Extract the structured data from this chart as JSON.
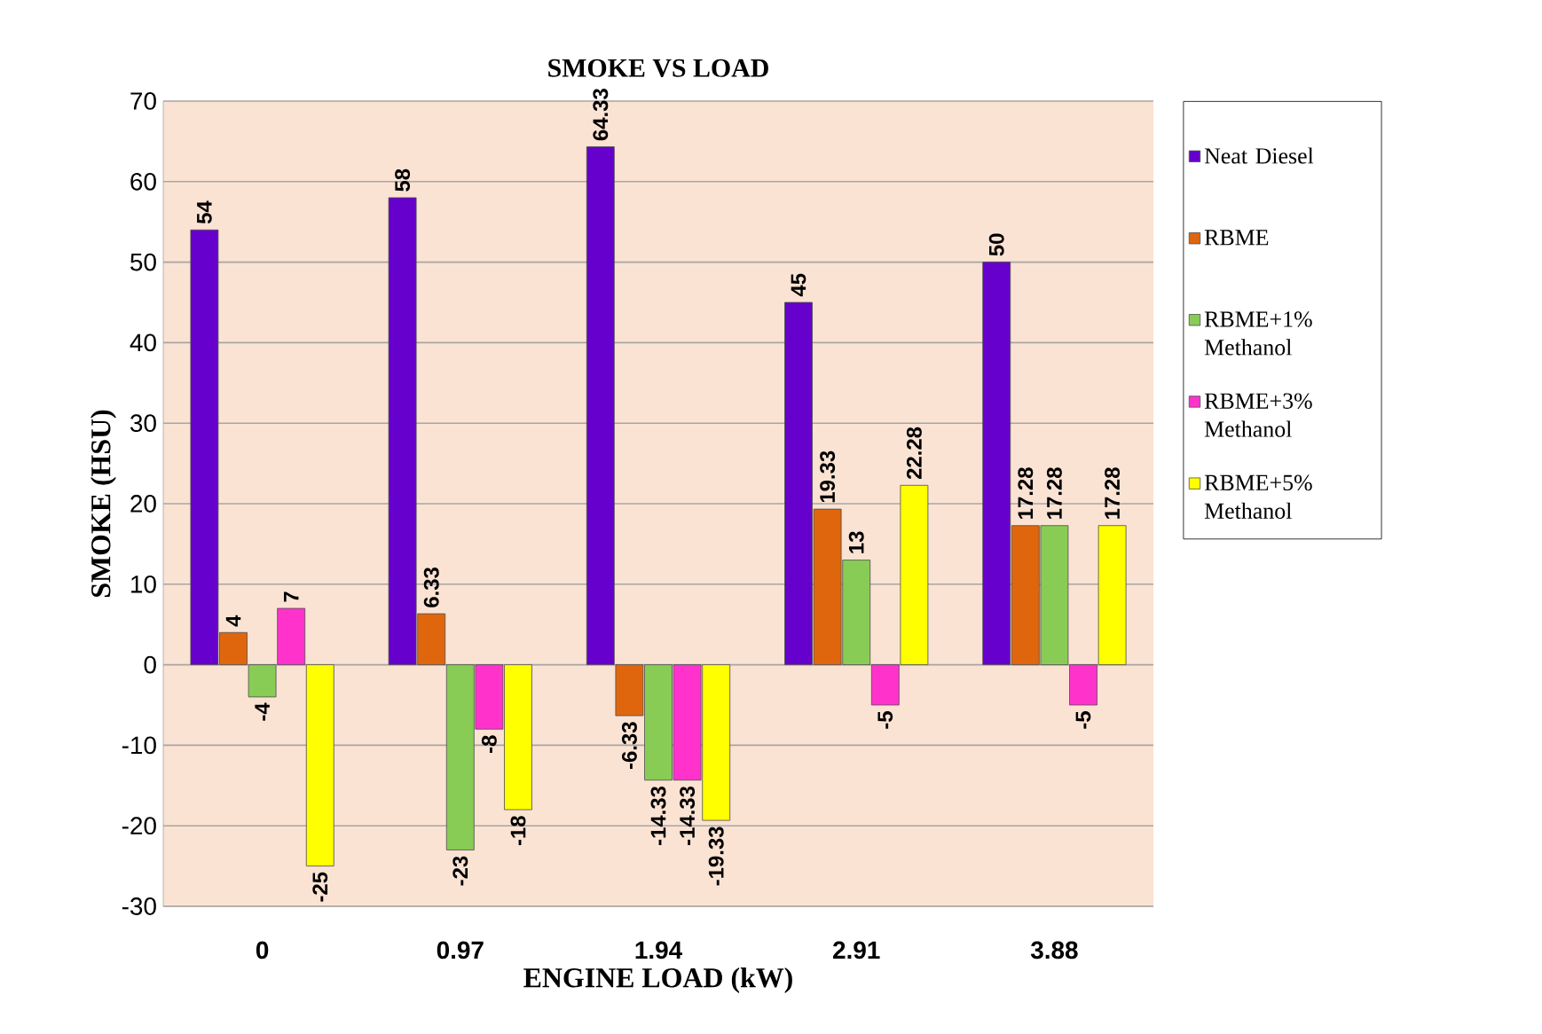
{
  "chart_data": {
    "type": "bar",
    "title": "SMOKE VS LOAD",
    "xlabel": "ENGINE LOAD (kW)",
    "ylabel": "SMOKE (HSU)",
    "categories": [
      "0",
      "0.97",
      "1.94",
      "2.91",
      "3.88"
    ],
    "series": [
      {
        "name": "Neat Diesel",
        "color": "#6600cc",
        "values": [
          54,
          58,
          64.33,
          45,
          50
        ]
      },
      {
        "name": "RBME",
        "color": "#e0660e",
        "values": [
          4,
          6.33,
          -6.33,
          19.33,
          17.28
        ]
      },
      {
        "name": "RBME+1% Methanol",
        "color": "#88cc55",
        "values": [
          -4,
          -23,
          -14.33,
          13,
          17.28
        ]
      },
      {
        "name": "RBME+3% Methanol",
        "color": "#ff33cc",
        "values": [
          7,
          -8,
          -14.33,
          -5,
          -5
        ]
      },
      {
        "name": "RBME+5% Methanol",
        "color": "#ffff00",
        "values": [
          -25,
          -18,
          -19.33,
          22.28,
          17.28
        ]
      }
    ],
    "ylim": [
      -30,
      70
    ],
    "yticks": [
      -30,
      -20,
      -10,
      0,
      10,
      20,
      30,
      40,
      50,
      60,
      70
    ],
    "grid": "y",
    "legend": "right",
    "data_labels": true
  }
}
